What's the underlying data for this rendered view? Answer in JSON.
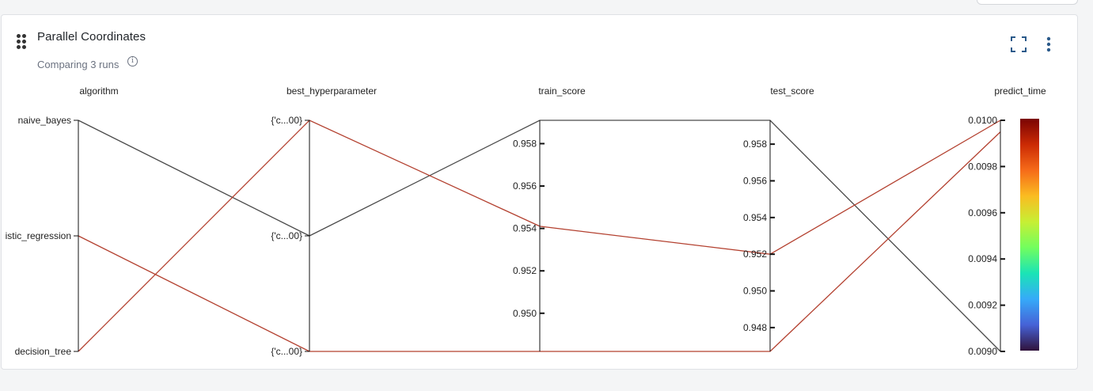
{
  "card": {
    "title": "Parallel Coordinates",
    "subtitle": "Comparing 3 runs",
    "info_icon": "info-icon",
    "fullscreen_icon": "fullscreen-icon",
    "menu_icon": "more-vertical-icon",
    "drag_icon": "drag-handle-icon"
  },
  "colors": {
    "line_low": "#4a4a4a",
    "line_high": "#b3402f",
    "axis": "#111111"
  },
  "chart_data": {
    "type": "parallel_coordinates",
    "dimensions": [
      {
        "name": "algorithm",
        "kind": "categorical",
        "categories": [
          "naive_bayes",
          "logistic_regression",
          "decision_tree"
        ],
        "tick_labels": [
          "naive_bayes",
          "istic_regression",
          "decision_tree"
        ]
      },
      {
        "name": "best_hyperparameter",
        "kind": "categorical",
        "categories": [
          "top",
          "middle",
          "bottom"
        ],
        "tick_labels": [
          "{'c...00}",
          "{'c...00}",
          "{'c...00}"
        ]
      },
      {
        "name": "train_score",
        "kind": "numeric",
        "range": [
          0.9482,
          0.9591
        ],
        "ticks": [
          "0.950",
          "0.952",
          "0.954",
          "0.956",
          "0.958"
        ],
        "tick_values": [
          0.95,
          0.952,
          0.954,
          0.956,
          0.958
        ]
      },
      {
        "name": "test_score",
        "kind": "numeric",
        "range": [
          0.9467,
          0.9593
        ],
        "ticks": [
          "0.948",
          "0.950",
          "0.952",
          "0.954",
          "0.956",
          "0.958"
        ],
        "tick_values": [
          0.948,
          0.95,
          0.952,
          0.954,
          0.956,
          0.958
        ]
      },
      {
        "name": "predict_time",
        "kind": "numeric",
        "range": [
          0.009,
          0.01
        ],
        "ticks": [
          "0.0090",
          "0.0092",
          "0.0094",
          "0.0096",
          "0.0098",
          "0.0100"
        ],
        "tick_values": [
          0.009,
          0.0092,
          0.0094,
          0.0096,
          0.0098,
          0.01
        ]
      }
    ],
    "runs": [
      {
        "algorithm": "naive_bayes",
        "best_hyperparameter": "middle",
        "train_score": 0.9591,
        "test_score": 0.9593,
        "predict_time": 0.009
      },
      {
        "algorithm": "logistic_regression",
        "best_hyperparameter": "bottom",
        "train_score": 0.9482,
        "test_score": 0.9467,
        "predict_time": 0.00995
      },
      {
        "algorithm": "decision_tree",
        "best_hyperparameter": "top",
        "train_score": 0.9541,
        "test_score": 0.952,
        "predict_time": 0.01
      }
    ],
    "colorscale": {
      "dimension": "predict_time",
      "min": 0.009,
      "max": 0.01,
      "colors": [
        "#30123b",
        "#4662d7",
        "#36aaf9",
        "#1ae4b6",
        "#72fe5e",
        "#c7ef34",
        "#fabc21",
        "#f66b19",
        "#cb2a04",
        "#7a0403"
      ]
    }
  }
}
